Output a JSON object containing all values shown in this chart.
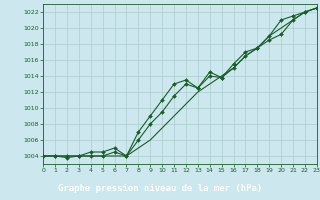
{
  "title": "Graphe pression niveau de la mer (hPa)",
  "bg_plot": "#cce8ee",
  "bg_label": "#2d6b4a",
  "grid_color": "#aacccc",
  "line_color": "#1a5c2a",
  "label_text_color": "#ffffff",
  "xlim": [
    0,
    23
  ],
  "ylim": [
    1003,
    1023
  ],
  "yticks": [
    1004,
    1006,
    1008,
    1010,
    1012,
    1014,
    1016,
    1018,
    1020,
    1022
  ],
  "xticks": [
    0,
    1,
    2,
    3,
    4,
    5,
    6,
    7,
    8,
    9,
    10,
    11,
    12,
    13,
    14,
    15,
    16,
    17,
    18,
    19,
    20,
    21,
    22,
    23
  ],
  "series_smooth": [
    1004,
    1004,
    1004,
    1004,
    1004,
    1004,
    1004,
    1004,
    1005,
    1006,
    1007.5,
    1009,
    1010.5,
    1012,
    1013,
    1014,
    1015,
    1016.5,
    1017.5,
    1019,
    1020,
    1021,
    1022,
    1022.5
  ],
  "series_upper": [
    1004,
    1004,
    1004,
    1004,
    1004.5,
    1004.5,
    1005,
    1004,
    1007,
    1009,
    1011,
    1013,
    1013.5,
    1012.5,
    1014.5,
    1013.8,
    1015.5,
    1017,
    1017.5,
    1019,
    1021,
    1021.5,
    1022,
    1022.5
  ],
  "series_lower": [
    1004,
    1004,
    1003.8,
    1004,
    1004,
    1004,
    1004.5,
    1004,
    1006,
    1008,
    1009.5,
    1011.5,
    1013,
    1012.5,
    1014,
    1013.8,
    1015,
    1016.5,
    1017.5,
    1018.5,
    1019.2,
    1021,
    1022,
    1022.5
  ]
}
